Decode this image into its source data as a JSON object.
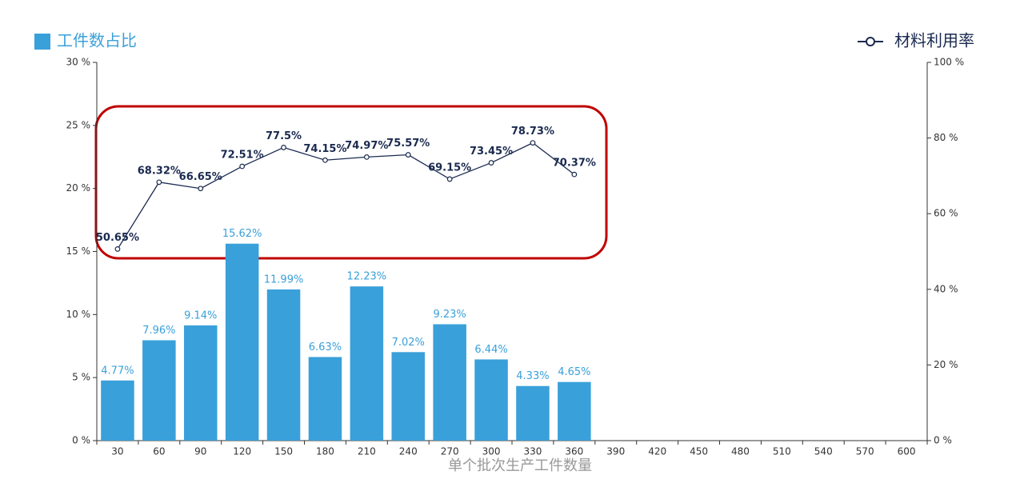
{
  "chart_data": {
    "type": "bar_line",
    "x_label": "单个批次生产工件数量",
    "categories": [
      "30",
      "60",
      "90",
      "120",
      "150",
      "180",
      "210",
      "240",
      "270",
      "300",
      "330",
      "360",
      "390",
      "420",
      "450",
      "480",
      "510",
      "540",
      "570",
      "600"
    ],
    "series": [
      {
        "name": "工件数占比",
        "type": "bar",
        "color": "#3aa0da",
        "values": [
          4.77,
          7.96,
          9.14,
          15.62,
          11.99,
          6.63,
          12.23,
          7.02,
          9.23,
          6.44,
          4.33,
          4.65,
          null,
          null,
          null,
          null,
          null,
          null,
          null,
          null
        ],
        "value_labels": [
          "4.77%",
          "7.96%",
          "9.14%",
          "15.62%",
          "11.99%",
          "6.63%",
          "12.23%",
          "7.02%",
          "9.23%",
          "6.44%",
          "4.33%",
          "4.65%",
          null,
          null,
          null,
          null,
          null,
          null,
          null,
          null
        ]
      },
      {
        "name": "材料利用率",
        "type": "line",
        "axis": "y2",
        "color": "#1a2a4f",
        "values": [
          50.65,
          68.32,
          66.65,
          72.51,
          77.5,
          74.15,
          74.97,
          75.57,
          69.15,
          73.45,
          78.73,
          70.37,
          null,
          null,
          null,
          null,
          null,
          null,
          null,
          null
        ],
        "value_labels": [
          "50.65%",
          "68.32%",
          "66.65%",
          "72.51%",
          "77.5%",
          "74.15%",
          "74.97%",
          "75.57%",
          "69.15%",
          "73.45%",
          "78.73%",
          "70.37%",
          null,
          null,
          null,
          null,
          null,
          null,
          null,
          null
        ]
      }
    ],
    "ylim": [
      0,
      30
    ],
    "yticks": [
      {
        "value": 0,
        "label": "0 %"
      },
      {
        "value": 5,
        "label": "5 %"
      },
      {
        "value": 10,
        "label": "10 %"
      },
      {
        "value": 15,
        "label": "15 %"
      },
      {
        "value": 20,
        "label": "20 %"
      },
      {
        "value": 25,
        "label": "25 %"
      },
      {
        "value": 30,
        "label": "30 %"
      }
    ],
    "y2lim": [
      0,
      100
    ],
    "y2ticks": [
      {
        "value": 0,
        "label": "0 %"
      },
      {
        "value": 20,
        "label": "20 %"
      },
      {
        "value": 40,
        "label": "40 %"
      },
      {
        "value": 60,
        "label": "60 %"
      },
      {
        "value": 80,
        "label": "80 %"
      },
      {
        "value": 100,
        "label": "100 %"
      }
    ],
    "grid": false
  }
}
